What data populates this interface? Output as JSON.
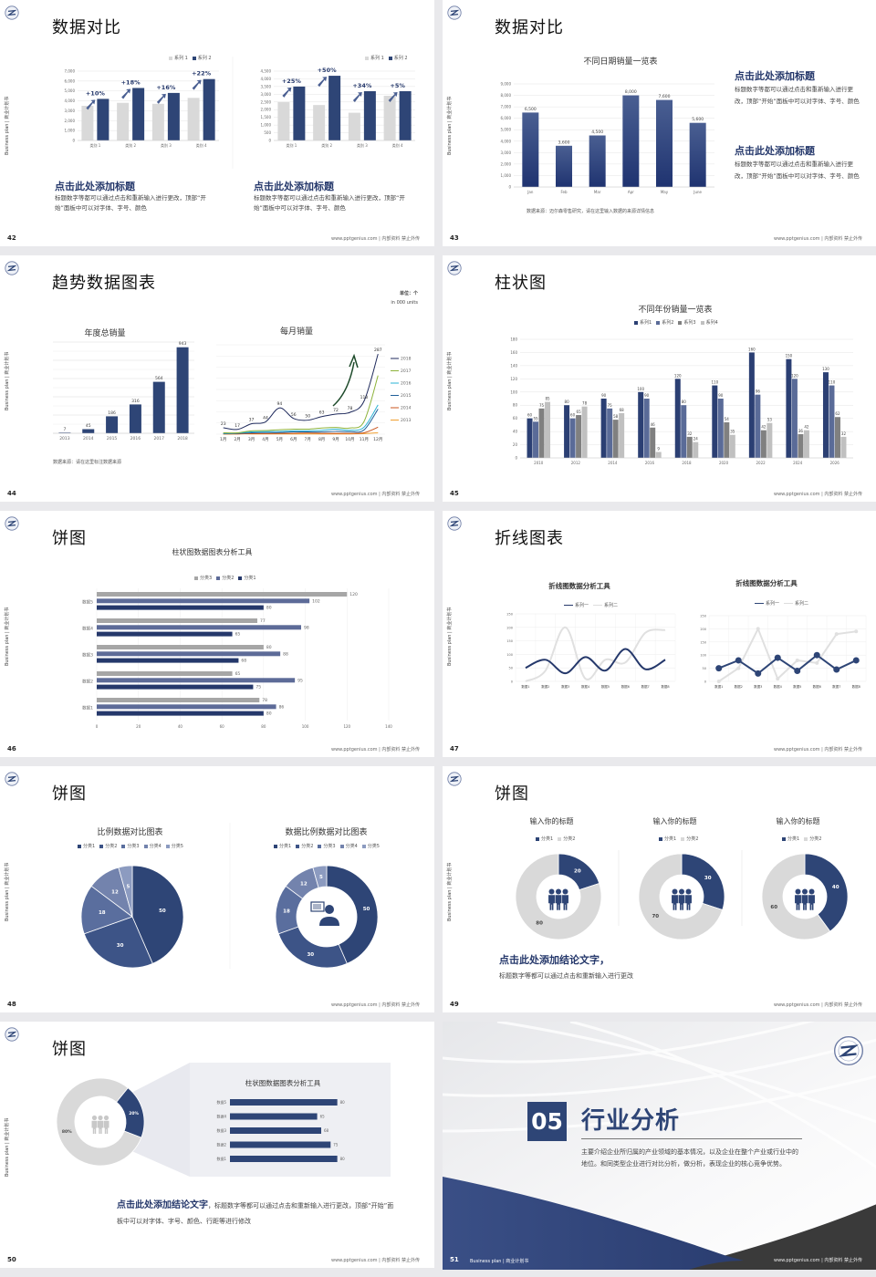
{
  "common": {
    "side_label": "Business plan | 商业计划书",
    "footer": "www.pptgenius.com | 内部资料 禁止外传"
  },
  "colors": {
    "navy": "#2e4576",
    "grey_bar": "#d9d9d9",
    "navy_dark": "#25386b"
  },
  "slides": {
    "s42": {
      "page": "42",
      "title": "数据对比",
      "left": {
        "heading": "点击此处添加标题",
        "desc": "标题数字等都可以通过点击和重新输入进行更改，顶部“开始”面板中可以对字体、字号、颜色"
      },
      "right": {
        "heading": "点击此处添加标题",
        "desc": "标题数字等都可以通过点击和重新输入进行更改，顶部“开始”面板中可以对字体、字号、颜色"
      }
    },
    "s43": {
      "page": "43",
      "title": "数据对比",
      "blocks": [
        {
          "heading": "点击此处添加标题",
          "desc": "标题数字等都可以通过点击和重新输入进行更改，顶部“开始”面板中可以对字体、字号、颜色"
        },
        {
          "heading": "点击此处添加标题",
          "desc": "标题数字等都可以通过点击和重新输入进行更改，顶部“开始”面板中可以对字体、字号、颜色"
        }
      ],
      "source": "数据来源：迈尔森零售研究，请在这里输入数据的来源详情信息"
    },
    "s44": {
      "page": "44",
      "title": "趋势数据图表",
      "unit": "单位：个",
      "unit_en": "in 000 units",
      "source": "数据来源：请在这里标注数据来源"
    },
    "s45": {
      "page": "45",
      "title": "柱状图"
    },
    "s46": {
      "page": "46",
      "title": "饼图"
    },
    "s47": {
      "page": "47",
      "title": "折线图表"
    },
    "s48": {
      "page": "48",
      "title": "饼图"
    },
    "s49": {
      "page": "49",
      "title": "饼图",
      "heading": "点击此处添加结论文字，",
      "desc": "标题数字等都可以通过点击和重新输入进行更改"
    },
    "s50": {
      "page": "50",
      "title": "饼图",
      "heading": "点击此处添加结论文字",
      "desc": "，标题数字等都可以通过点击和重新输入进行更改，顶部“开始”面板中可以对字体、字号、颜色、行距等进行修改"
    },
    "s51": {
      "page": "51",
      "number": "05",
      "title": "行业分析",
      "desc": "主要介绍企业所归属的产业领域的基本情况，以及企业在整个产业或行业中的地位。和同类型企业进行对比分析，做分析，表现企业的核心竞争优势。",
      "footer_left": "Business plan | 商业计划书"
    }
  },
  "chart_data": [
    {
      "id": "s42a",
      "type": "bar",
      "categories": [
        "类别 1",
        "类别 2",
        "类别 3",
        "类别 4"
      ],
      "series": [
        {
          "name": "系列 1",
          "values": [
            3500,
            3800,
            3700,
            4300
          ]
        },
        {
          "name": "系列 2",
          "values": [
            4200,
            5300,
            4800,
            6200
          ]
        }
      ],
      "annotations": [
        "+10%",
        "+18%",
        "+16%",
        "+22%"
      ],
      "ylim": [
        0,
        7000
      ],
      "yticks": [
        "0",
        "1,000",
        "2,000",
        "3,000",
        "4,000",
        "5,000",
        "6,000",
        "7,000"
      ],
      "legend": "top-right",
      "grid": true
    },
    {
      "id": "s42b",
      "type": "bar",
      "categories": [
        "类别 1",
        "类别 2",
        "类别 3",
        "类别 4"
      ],
      "series": [
        {
          "name": "系列 1",
          "values": [
            2500,
            2300,
            1800,
            2900
          ]
        },
        {
          "name": "系列 2",
          "values": [
            3500,
            4200,
            3200,
            3200
          ]
        }
      ],
      "annotations": [
        "+25%",
        "+50%",
        "+34%",
        "+5%"
      ],
      "ylim": [
        0,
        4500
      ],
      "yticks": [
        "0",
        "500",
        "1,000",
        "1,500",
        "2,000",
        "2,500",
        "3,000",
        "3,500",
        "4,000",
        "4,500"
      ],
      "legend": "top-right",
      "grid": true
    },
    {
      "id": "s43",
      "type": "bar",
      "title": "不同日期销量一览表",
      "categories": [
        "Jan",
        "Feb",
        "Mar",
        "Apr",
        "May",
        "June"
      ],
      "series": [
        {
          "values": [
            6500,
            3600,
            4500,
            8000,
            7600,
            5600
          ]
        }
      ],
      "labels": [
        "6,500",
        "3,600",
        "4,500",
        "8,000",
        "7,600",
        "5,600"
      ],
      "ylim": [
        0,
        9000
      ],
      "yticks": [
        "0",
        "1,000",
        "2,000",
        "3,000",
        "4,000",
        "5,000",
        "6,000",
        "7,000",
        "8,000",
        "9,000"
      ],
      "grid": true
    },
    {
      "id": "s44a",
      "type": "bar",
      "title": "年度总销量",
      "categories": [
        "2013",
        "2014",
        "2015",
        "2016",
        "2017",
        "2018"
      ],
      "series": [
        {
          "values": [
            7,
            45,
            186,
            316,
            564,
            943
          ]
        }
      ],
      "labels": [
        "7",
        "45",
        "186",
        "316",
        "564",
        "943"
      ],
      "ylim": [
        0,
        1000
      ],
      "grid": true
    },
    {
      "id": "s44b",
      "type": "line",
      "title": "每月销量",
      "categories": [
        "1月",
        "2月",
        "3月",
        "4月",
        "5月",
        "6月",
        "7月",
        "8月",
        "9月",
        "10月",
        "11月",
        "12月"
      ],
      "series": [
        {
          "name": "2018",
          "color": "#1f2a5c",
          "values": [
            23,
            17,
            37,
            44,
            94,
            56,
            50,
            63,
            72,
            78,
            118,
            287
          ],
          "labels": [
            "23",
            "17",
            "37",
            "44",
            "94",
            "56",
            "50",
            "63",
            "72",
            "78",
            "118",
            "287"
          ]
        },
        {
          "name": "2017",
          "color": "#8db33a",
          "values": [
            5,
            5,
            12,
            13,
            16,
            18,
            18,
            22,
            24,
            22,
            45,
            210
          ]
        },
        {
          "name": "2016",
          "color": "#2bb3d4",
          "values": [
            3,
            4,
            8,
            9,
            10,
            12,
            12,
            14,
            18,
            14,
            25,
            105
          ]
        },
        {
          "name": "2015",
          "color": "#1f5f99",
          "values": [
            2,
            3,
            5,
            6,
            6,
            8,
            8,
            8,
            10,
            9,
            15,
            90
          ]
        },
        {
          "name": "2014",
          "color": "#c9541c",
          "values": [
            1,
            1,
            2,
            2,
            3,
            3,
            4,
            3,
            3,
            3,
            5,
            25
          ]
        },
        {
          "name": "2013",
          "color": "#f0a030",
          "values": [
            0,
            1,
            1,
            1,
            1,
            1,
            1,
            1,
            1,
            1,
            2,
            5
          ]
        }
      ],
      "ylim": [
        0,
        320
      ],
      "legend": "right",
      "grid": true
    },
    {
      "id": "s45",
      "type": "bar",
      "title": "不同年份销量一览表",
      "categories": [
        "2010",
        "2012",
        "2014",
        "2016",
        "2018",
        "2020",
        "2022",
        "2024",
        "2026"
      ],
      "series": [
        {
          "name": "系列1",
          "color": "#2b3f73",
          "values": [
            60,
            80,
            90,
            100,
            120,
            110,
            160,
            150,
            130
          ]
        },
        {
          "name": "系列2",
          "color": "#5a6b98",
          "values": [
            55,
            60,
            75,
            90,
            80,
            90,
            96,
            120,
            110
          ]
        },
        {
          "name": "系列3",
          "color": "#808080",
          "values": [
            75,
            65,
            58,
            46,
            32,
            54,
            42,
            36,
            62
          ]
        },
        {
          "name": "系列4",
          "color": "#c0c0c0",
          "values": [
            85,
            78,
            68,
            9,
            24,
            35,
            53,
            42,
            32
          ]
        }
      ],
      "ylim": [
        0,
        180
      ],
      "yticks": [
        "0",
        "20",
        "40",
        "60",
        "80",
        "100",
        "120",
        "140",
        "160",
        "180"
      ],
      "legend": "top",
      "grid": true
    },
    {
      "id": "s46",
      "type": "bar",
      "orientation": "horizontal",
      "title": "柱状图数据图表分析工具",
      "categories": [
        "数据1",
        "数据2",
        "数据3",
        "数据4",
        "数据5"
      ],
      "series": [
        {
          "name": "分类3",
          "color": "#a6a6a6",
          "values": [
            78,
            65,
            80,
            77,
            120
          ]
        },
        {
          "name": "分类2",
          "color": "#5d6b98",
          "values": [
            86,
            95,
            88,
            98,
            102
          ]
        },
        {
          "name": "分类1",
          "color": "#25386b",
          "values": [
            80,
            75,
            68,
            65,
            80
          ]
        }
      ],
      "xlim": [
        0,
        140
      ],
      "xticks": [
        "0",
        "20",
        "40",
        "60",
        "80",
        "100",
        "120",
        "140"
      ],
      "legend": "top",
      "grid": true
    },
    {
      "id": "s47a",
      "type": "line",
      "title": "折线图数据分析工具",
      "smooth": true,
      "categories": [
        "数据1",
        "数据2",
        "数据3",
        "数据4",
        "数据5",
        "数据6",
        "数据7",
        "数据8"
      ],
      "series": [
        {
          "name": "系列一",
          "color": "#25386b",
          "values": [
            50,
            80,
            30,
            90,
            40,
            120,
            45,
            80
          ]
        },
        {
          "name": "系列二",
          "color": "#e0e0e0",
          "values": [
            0,
            40,
            200,
            10,
            80,
            70,
            180,
            190
          ]
        }
      ],
      "ylim": [
        0,
        250
      ],
      "yticks": [
        "0",
        "50",
        "100",
        "150",
        "200",
        "250"
      ],
      "legend": "top",
      "grid": true
    },
    {
      "id": "s47b",
      "type": "line",
      "title": "折线图数据分析工具",
      "markers": true,
      "categories": [
        "数据1",
        "数据2",
        "数据3",
        "数据4",
        "数据5",
        "数据6",
        "数据7",
        "数据8"
      ],
      "series": [
        {
          "name": "系列一",
          "color": "#2e4576",
          "values": [
            50,
            80,
            30,
            90,
            40,
            100,
            45,
            80
          ]
        },
        {
          "name": "系列二",
          "color": "#e0e0e0",
          "values": [
            0,
            50,
            200,
            10,
            80,
            70,
            180,
            190
          ]
        }
      ],
      "ylim": [
        0,
        250
      ],
      "yticks": [
        "0",
        "50",
        "100",
        "150",
        "200",
        "250"
      ],
      "legend": "top",
      "grid": true
    },
    {
      "id": "s48a",
      "type": "pie",
      "title": "比例数据对比图表",
      "categories": [
        "分类1",
        "分类2",
        "分类3",
        "分类4",
        "分类5"
      ],
      "values": [
        50,
        30,
        18,
        12,
        5
      ],
      "colors": [
        "#2e4576",
        "#3d5487",
        "#5a6e9e",
        "#7383ad",
        "#8c9bc0"
      ],
      "legend": "top"
    },
    {
      "id": "s48b",
      "type": "pie",
      "donut": true,
      "title": "数据比例数据对比图表",
      "categories": [
        "分类1",
        "分类2",
        "分类3",
        "分类4",
        "分类5"
      ],
      "values": [
        50,
        30,
        18,
        12,
        5
      ],
      "colors": [
        "#2e4576",
        "#3d5487",
        "#5a6e9e",
        "#7383ad",
        "#8c9bc0"
      ],
      "legend": "top",
      "center_icon": "person-chat-icon"
    },
    {
      "id": "s49a",
      "type": "pie",
      "donut": true,
      "title": "输入你的标题",
      "categories": [
        "分类1",
        "分类2"
      ],
      "values": [
        20,
        80
      ],
      "colors": [
        "#2e4576",
        "#d9d9d9"
      ],
      "legend": "top",
      "center_icon": "team-icon"
    },
    {
      "id": "s49b",
      "type": "pie",
      "donut": true,
      "title": "输入你的标题",
      "categories": [
        "分类1",
        "分类2"
      ],
      "values": [
        30,
        70
      ],
      "colors": [
        "#2e4576",
        "#d9d9d9"
      ],
      "legend": "top",
      "center_icon": "team-icon"
    },
    {
      "id": "s49c",
      "type": "pie",
      "donut": true,
      "title": "输入你的标题",
      "categories": [
        "分类1",
        "分类2"
      ],
      "values": [
        40,
        60
      ],
      "colors": [
        "#2e4576",
        "#d9d9d9"
      ],
      "legend": "top",
      "center_icon": "team-icon"
    },
    {
      "id": "s50a",
      "type": "pie",
      "donut": true,
      "values": [
        20,
        80
      ],
      "labels": [
        "20%",
        "80%"
      ],
      "colors": [
        "#2e4576",
        "#d9d9d9"
      ],
      "center_icon": "team-icon"
    },
    {
      "id": "s50b",
      "type": "bar",
      "orientation": "horizontal",
      "title": "柱状图数据图表分析工具",
      "categories": [
        "数据1",
        "数据2",
        "数据3",
        "数据4",
        "数据5"
      ],
      "series": [
        {
          "color": "#2e4576",
          "values": [
            80,
            75,
            68,
            65,
            80
          ]
        }
      ],
      "xlim": [
        0,
        85
      ]
    }
  ]
}
